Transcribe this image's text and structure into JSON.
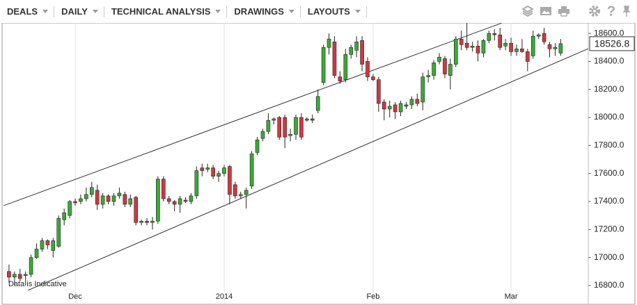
{
  "toolbar": {
    "menus": [
      "DEALS",
      "DAILY",
      "TECHNICAL ANALYSIS",
      "DRAWINGS",
      "LAYOUTS"
    ]
  },
  "chart_data": {
    "type": "candlestick",
    "annotation": "Data is Indicative",
    "up_color": "#3aaa35",
    "down_color": "#d0383e",
    "ylim": [
      16765,
      18675
    ],
    "yticks": [
      {
        "value": 16800,
        "label": "16800.0"
      },
      {
        "value": 17000,
        "label": "17000.0"
      },
      {
        "value": 17200,
        "label": "17200.0"
      },
      {
        "value": 17400,
        "label": "17400.0"
      },
      {
        "value": 17600,
        "label": "17600.0"
      },
      {
        "value": 17800,
        "label": "17800.0"
      },
      {
        "value": 18000,
        "label": "18000.0"
      },
      {
        "value": 18200,
        "label": "18200.0"
      },
      {
        "value": 18400,
        "label": "18400.0"
      },
      {
        "value": 18600,
        "label": "18600.0"
      }
    ],
    "xlim": [
      -1,
      105
    ],
    "xticks": [
      {
        "value": 12,
        "label": "Dec"
      },
      {
        "value": 39,
        "label": "2014"
      },
      {
        "value": 66,
        "label": "Feb"
      },
      {
        "value": 91,
        "label": "Mar"
      }
    ],
    "grid": true,
    "last_price": 18526.8,
    "trendlines": [
      {
        "x": [
          -1,
          89.3
        ],
        "y": [
          17370,
          18674
        ]
      },
      {
        "x": [
          3.4,
          105
        ],
        "y": [
          16765,
          18491
        ]
      }
    ],
    "ohlc": [
      [
        16900,
        16950,
        16820,
        16860
      ],
      [
        16860,
        16900,
        16800,
        16880
      ],
      [
        16880,
        16920,
        16830,
        16850
      ],
      [
        16870,
        16900,
        16800,
        16880
      ],
      [
        16880,
        17020,
        16860,
        17000
      ],
      [
        17000,
        17100,
        16990,
        17060
      ],
      [
        17060,
        17140,
        17040,
        17120
      ],
      [
        17120,
        17130,
        17060,
        17090
      ],
      [
        17050,
        17140,
        17000,
        17120
      ],
      [
        17080,
        17300,
        17070,
        17280
      ],
      [
        17270,
        17350,
        17230,
        17320
      ],
      [
        17300,
        17410,
        17280,
        17400
      ],
      [
        17400,
        17420,
        17370,
        17390
      ],
      [
        17400,
        17450,
        17380,
        17420
      ],
      [
        17420,
        17500,
        17400,
        17450
      ],
      [
        17450,
        17540,
        17430,
        17500
      ],
      [
        17480,
        17520,
        17340,
        17380
      ],
      [
        17380,
        17460,
        17350,
        17440
      ],
      [
        17440,
        17450,
        17380,
        17400
      ],
      [
        17400,
        17460,
        17370,
        17440
      ],
      [
        17440,
        17500,
        17420,
        17460
      ],
      [
        17450,
        17470,
        17360,
        17380
      ],
      [
        17380,
        17450,
        17360,
        17420
      ],
      [
        17430,
        17440,
        17230,
        17250
      ],
      [
        17250,
        17270,
        17230,
        17260
      ],
      [
        17260,
        17280,
        17230,
        17250
      ],
      [
        17250,
        17290,
        17200,
        17260
      ],
      [
        17260,
        17580,
        17240,
        17560
      ],
      [
        17560,
        17580,
        17400,
        17420
      ],
      [
        17420,
        17440,
        17380,
        17400
      ],
      [
        17400,
        17410,
        17330,
        17380
      ],
      [
        17380,
        17440,
        17320,
        17420
      ],
      [
        17410,
        17430,
        17390,
        17400
      ],
      [
        17400,
        17460,
        17380,
        17440
      ],
      [
        17440,
        17650,
        17420,
        17620
      ],
      [
        17640,
        17670,
        17580,
        17620
      ],
      [
        17630,
        17670,
        17610,
        17640
      ],
      [
        17640,
        17660,
        17560,
        17580
      ],
      [
        17580,
        17620,
        17540,
        17600
      ],
      [
        17600,
        17660,
        17580,
        17640
      ],
      [
        17650,
        17660,
        17380,
        17450
      ],
      [
        17520,
        17540,
        17420,
        17440
      ],
      [
        17440,
        17470,
        17420,
        17450
      ],
      [
        17450,
        17500,
        17350,
        17480
      ],
      [
        17510,
        17760,
        17490,
        17740
      ],
      [
        17750,
        17860,
        17730,
        17840
      ],
      [
        17850,
        17920,
        17830,
        17900
      ],
      [
        17900,
        18030,
        17880,
        17980
      ],
      [
        17980,
        18000,
        17950,
        17990
      ],
      [
        18000,
        18010,
        17840,
        17860
      ],
      [
        18000,
        18020,
        17780,
        17860
      ],
      [
        17870,
        17920,
        17830,
        17880
      ],
      [
        17880,
        18020,
        17840,
        18000
      ],
      [
        18000,
        18030,
        17840,
        17860
      ],
      [
        17980,
        18000,
        17970,
        17990
      ],
      [
        17990,
        18020,
        17960,
        17980
      ],
      [
        18050,
        18200,
        18030,
        18150
      ],
      [
        18250,
        18520,
        18230,
        18500
      ],
      [
        18500,
        18600,
        18450,
        18560
      ],
      [
        18540,
        18580,
        18280,
        18300
      ],
      [
        18290,
        18330,
        18240,
        18260
      ],
      [
        18270,
        18490,
        18250,
        18450
      ],
      [
        18450,
        18520,
        18420,
        18500
      ],
      [
        18480,
        18580,
        18430,
        18540
      ],
      [
        18550,
        18580,
        18330,
        18380
      ],
      [
        18400,
        18430,
        18260,
        18290
      ],
      [
        18290,
        18310,
        18260,
        18270
      ],
      [
        18270,
        18290,
        18040,
        18100
      ],
      [
        18110,
        18130,
        17980,
        18060
      ],
      [
        18060,
        18120,
        18000,
        18080
      ],
      [
        18090,
        18110,
        17990,
        18040
      ],
      [
        18040,
        18120,
        18010,
        18100
      ],
      [
        18090,
        18110,
        18060,
        18080
      ],
      [
        18090,
        18150,
        18060,
        18130
      ],
      [
        18130,
        18170,
        18080,
        18100
      ],
      [
        18110,
        18320,
        18050,
        18290
      ],
      [
        18290,
        18340,
        18250,
        18300
      ],
      [
        18300,
        18410,
        18270,
        18390
      ],
      [
        18400,
        18460,
        18380,
        18430
      ],
      [
        18420,
        18440,
        18280,
        18310
      ],
      [
        18300,
        18420,
        18200,
        18380
      ],
      [
        18380,
        18580,
        18360,
        18560
      ],
      [
        18560,
        18620,
        18480,
        18520
      ],
      [
        18530,
        18680,
        18480,
        18500
      ],
      [
        18500,
        18540,
        18470,
        18510
      ],
      [
        18510,
        18550,
        18400,
        18460
      ],
      [
        18460,
        18560,
        18430,
        18550
      ],
      [
        18550,
        18620,
        18530,
        18600
      ],
      [
        18600,
        18630,
        18550,
        18590
      ],
      [
        18590,
        18640,
        18480,
        18500
      ],
      [
        18510,
        18560,
        18480,
        18530
      ],
      [
        18530,
        18570,
        18440,
        18470
      ],
      [
        18470,
        18520,
        18440,
        18490
      ],
      [
        18490,
        18560,
        18460,
        18470
      ],
      [
        18470,
        18490,
        18330,
        18400
      ],
      [
        18440,
        18620,
        18420,
        18580
      ],
      [
        18580,
        18600,
        18560,
        18590
      ],
      [
        18600,
        18640,
        18520,
        18540
      ],
      [
        18520,
        18540,
        18430,
        18490
      ],
      [
        18490,
        18530,
        18440,
        18500
      ],
      [
        18460,
        18560,
        18440,
        18526.8
      ]
    ]
  }
}
